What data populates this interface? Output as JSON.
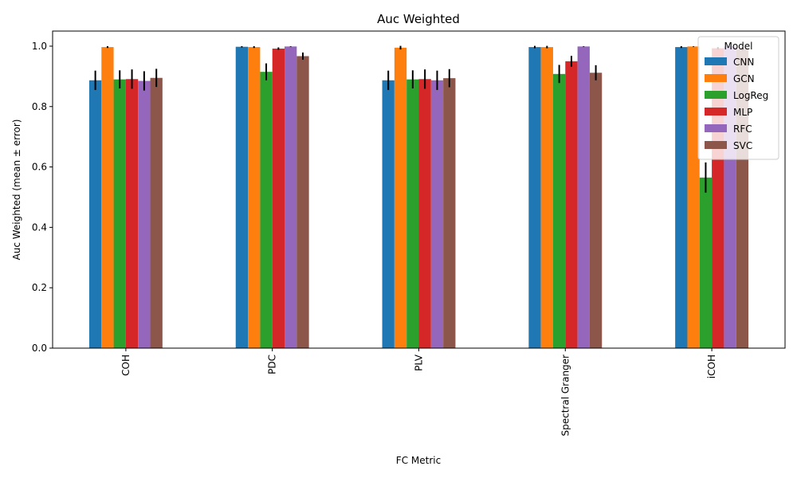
{
  "chart_data": {
    "type": "bar",
    "title": "Auc Weighted",
    "xlabel": "FC Metric",
    "ylabel": "Auc Weighted (mean ± error)",
    "ylim": [
      0,
      1.05
    ],
    "yticks": [
      "0.0",
      "0.2",
      "0.4",
      "0.6",
      "0.8",
      "1.0"
    ],
    "grid": false,
    "legend": {
      "title": "Model",
      "placement": "top-right"
    },
    "categories": [
      "COH",
      "PDC",
      "PLV",
      "Spectral Granger",
      "iCOH"
    ],
    "series": [
      {
        "name": "CNN",
        "color": "#1f77b4",
        "values": [
          0.887,
          0.998,
          0.887,
          0.997,
          0.997
        ],
        "errors": [
          0.032,
          0.002,
          0.032,
          0.004,
          0.003
        ]
      },
      {
        "name": "GCN",
        "color": "#ff7f0e",
        "values": [
          0.997,
          0.997,
          0.995,
          0.997,
          0.999
        ],
        "errors": [
          0.003,
          0.003,
          0.006,
          0.004,
          0.001
        ]
      },
      {
        "name": "LogReg",
        "color": "#2ca02c",
        "values": [
          0.89,
          0.915,
          0.89,
          0.908,
          0.565
        ],
        "errors": [
          0.03,
          0.028,
          0.03,
          0.03,
          0.05
        ]
      },
      {
        "name": "MLP",
        "color": "#d62728",
        "values": [
          0.891,
          0.992,
          0.891,
          0.95,
          0.993
        ],
        "errors": [
          0.032,
          0.004,
          0.032,
          0.018,
          0.004
        ]
      },
      {
        "name": "RFC",
        "color": "#9467bd",
        "values": [
          0.885,
          0.999,
          0.887,
          0.999,
          0.999
        ],
        "errors": [
          0.032,
          0.001,
          0.032,
          0.001,
          0.001
        ]
      },
      {
        "name": "SVC",
        "color": "#8c564b",
        "values": [
          0.895,
          0.967,
          0.894,
          0.912,
          0.99
        ],
        "errors": [
          0.03,
          0.012,
          0.03,
          0.025,
          0.005
        ]
      }
    ]
  }
}
